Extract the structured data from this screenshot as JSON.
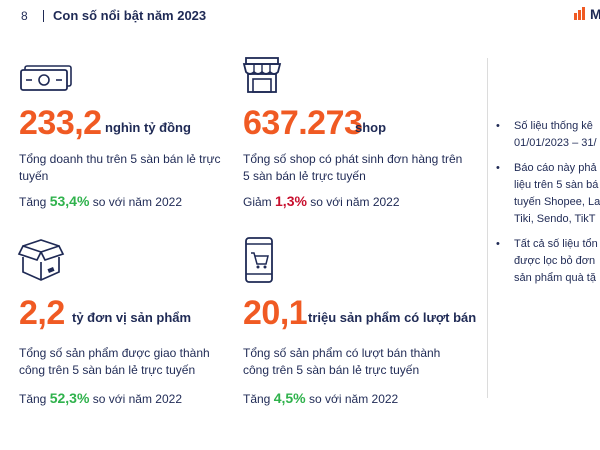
{
  "header": {
    "page_number": "8",
    "title": "Con số nổi bật năm 2023",
    "logo_text": "M"
  },
  "stats": [
    {
      "icon": "money-icon",
      "value": "233,2",
      "unit": "nghìn tỷ đồng",
      "description": "Tổng doanh thu trên 5 sàn bán lẻ trực tuyến",
      "change_prefix": "Tăng",
      "change_value": "53,4%",
      "change_direction": "up",
      "change_suffix": "so với năm 2022"
    },
    {
      "icon": "shop-icon",
      "value": "637.273",
      "unit": "shop",
      "description": "Tổng số shop có phát sinh đơn hàng trên 5 sàn bán lẻ trực tuyến",
      "change_prefix": "Giảm",
      "change_value": "1,3%",
      "change_direction": "down",
      "change_suffix": "so với năm 2022"
    },
    {
      "icon": "box-icon",
      "value": "2,2",
      "unit": "tỷ đơn vị sản phẩm",
      "description": "Tổng số sản phẩm được giao thành công trên 5 sàn bán lẻ trực tuyến",
      "change_prefix": "Tăng",
      "change_value": "52,3%",
      "change_direction": "up",
      "change_suffix": "so với năm 2022"
    },
    {
      "icon": "mobile-cart-icon",
      "value": "20,1",
      "unit": "triệu sản phẩm có lượt bán",
      "description": "Tổng số sản phẩm có lượt bán thành công trên 5 sàn bán lẻ trực tuyến",
      "change_prefix": "Tăng",
      "change_value": "4,5%",
      "change_direction": "up",
      "change_suffix": "so với năm 2022"
    }
  ],
  "notes": [
    {
      "lines": [
        "Số liệu thống kê",
        "01/01/2023 – 31/"
      ]
    },
    {
      "lines": [
        "Báo cáo này phả",
        "liệu trên 5 sàn bá",
        "tuyến Shopee, La",
        "Tiki,  Sendo, TikT"
      ]
    },
    {
      "lines": [
        "Tất cả số liệu tổn",
        "được lọc bỏ đơn",
        "sản phẩm quà tặ"
      ]
    }
  ],
  "colors": {
    "accent": "#f05a23",
    "navy": "#1f2a55",
    "up": "#2fb24c",
    "down": "#c8102e"
  }
}
